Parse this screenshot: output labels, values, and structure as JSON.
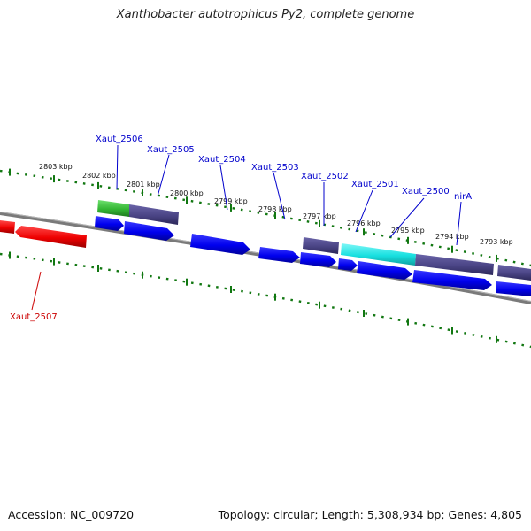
{
  "title": "Xanthobacter autotrophicus Py2, complete genome",
  "footer": {
    "accession": "Accession: NC_009720",
    "summary": "Topology: circular; Length: 5,308,934 bp; Genes: 4,805"
  },
  "scale_labels": [
    "2803 kbp",
    "2802 kbp",
    "2801 kbp",
    "2800 kbp",
    "2799 kbp",
    "2798 kbp",
    "2797 kbp",
    "2796 kbp",
    "2795 kbp",
    "2794 kbp",
    "2793 kbp"
  ],
  "gene_labels": [
    "Xaut_2506",
    "Xaut_2505",
    "Xaut_2504",
    "Xaut_2503",
    "Xaut_2502",
    "Xaut_2501",
    "Xaut_2500",
    "nirA",
    "Xaut_2507"
  ],
  "colors": {
    "cds_blue": "#0000ee",
    "gene_purple": "#4a4485",
    "highlight_red": "#ee0000",
    "gene_green": "#33b533",
    "gene_cyan": "#18e0e0",
    "tick_green": "#117711",
    "label_blue": "#0000cc",
    "label_red": "#cc0000",
    "backbone": "#7a7a7a"
  }
}
